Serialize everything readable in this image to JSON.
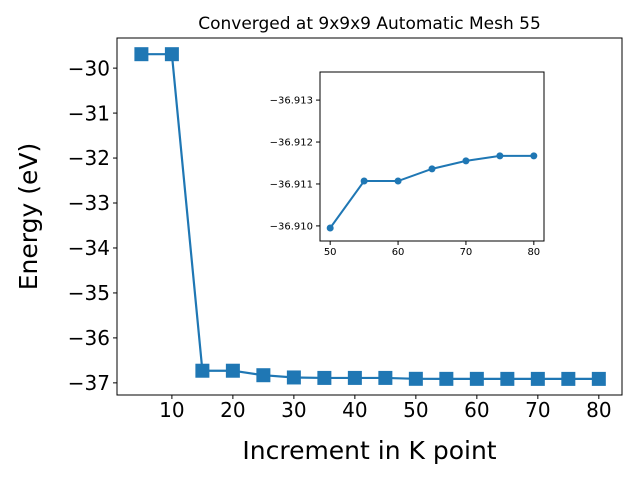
{
  "chart_data": [
    {
      "type": "line",
      "title": "Converged at 9x9x9 Automatic Mesh 55",
      "xlabel": "Increment in K point",
      "ylabel": "Energy (eV)",
      "x": [
        5,
        10,
        15,
        20,
        25,
        30,
        35,
        40,
        45,
        50,
        55,
        60,
        65,
        70,
        75,
        80
      ],
      "series": [
        {
          "color": "#1f77b4",
          "marker": "square",
          "values": [
            -29.69,
            -29.69,
            -36.73,
            -36.73,
            -36.83,
            -36.88,
            -36.89,
            -36.89,
            -36.89,
            -36.91,
            -36.911,
            -36.911,
            -36.9114,
            -36.9116,
            -36.9117,
            -36.9117
          ]
        }
      ],
      "xlim": [
        1,
        83.8
      ],
      "ylim": [
        -37.27,
        -29.33
      ],
      "xticks": [
        10,
        20,
        30,
        40,
        50,
        60,
        70,
        80
      ],
      "yticks": [
        {
          "value": -37,
          "label": "−37"
        },
        {
          "value": -36,
          "label": "−36"
        },
        {
          "value": -35,
          "label": "−35"
        },
        {
          "value": -34,
          "label": "−34"
        },
        {
          "value": -33,
          "label": "−33"
        },
        {
          "value": -32,
          "label": "−32"
        },
        {
          "value": -31,
          "label": "−31"
        },
        {
          "value": -30,
          "label": "−30"
        }
      ]
    },
    {
      "type": "line",
      "x": [
        50,
        55,
        60,
        65,
        70,
        75,
        80
      ],
      "series": [
        {
          "color": "#1f77b4",
          "marker": "circle",
          "values": [
            -36.90995,
            -36.91107,
            -36.91107,
            -36.91136,
            -36.91155,
            -36.91167,
            -36.91167
          ]
        }
      ],
      "xlim": [
        48.5,
        81.5
      ],
      "ylim": [
        -36.90964,
        -36.91367
      ],
      "xticks": [
        50,
        60,
        70,
        80
      ],
      "yticks": [
        {
          "value": -36.91,
          "label": "−36.910"
        },
        {
          "value": -36.911,
          "label": "−36.911"
        },
        {
          "value": -36.912,
          "label": "−36.912"
        },
        {
          "value": -36.913,
          "label": "−36.913"
        }
      ]
    }
  ]
}
